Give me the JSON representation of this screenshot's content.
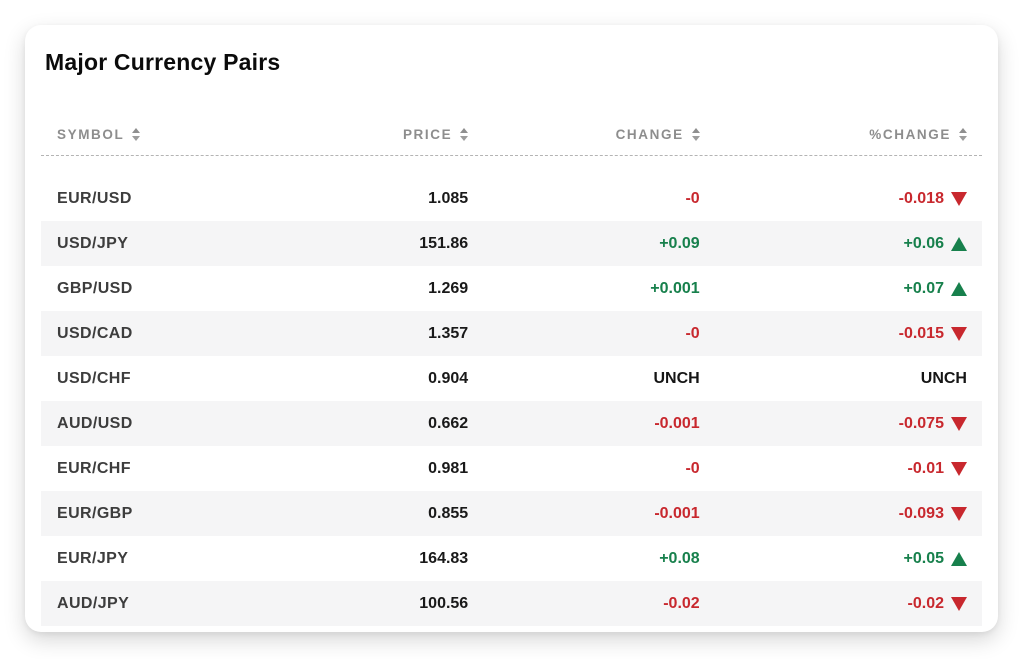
{
  "card": {
    "title": "Major Currency Pairs"
  },
  "table": {
    "columns": [
      {
        "label": "SYMBOL",
        "icon": "sort-icon",
        "sortable": true
      },
      {
        "label": "PRICE",
        "icon": "sort-icon",
        "sortable": true
      },
      {
        "label": "CHANGE",
        "icon": "sort-icon",
        "sortable": true
      },
      {
        "label": "%CHANGE",
        "icon": "sort-icon",
        "sortable": true
      }
    ],
    "rows": [
      {
        "symbol": "EUR/USD",
        "price": "1.085",
        "change": "-0",
        "pct_change": "-0.018",
        "direction": "down"
      },
      {
        "symbol": "USD/JPY",
        "price": "151.86",
        "change": "+0.09",
        "pct_change": "+0.06",
        "direction": "up"
      },
      {
        "symbol": "GBP/USD",
        "price": "1.269",
        "change": "+0.001",
        "pct_change": "+0.07",
        "direction": "up"
      },
      {
        "symbol": "USD/CAD",
        "price": "1.357",
        "change": "-0",
        "pct_change": "-0.015",
        "direction": "down"
      },
      {
        "symbol": "USD/CHF",
        "price": "0.904",
        "change": "UNCH",
        "pct_change": "UNCH",
        "direction": "unch"
      },
      {
        "symbol": "AUD/USD",
        "price": "0.662",
        "change": "-0.001",
        "pct_change": "-0.075",
        "direction": "down"
      },
      {
        "symbol": "EUR/CHF",
        "price": "0.981",
        "change": "-0",
        "pct_change": "-0.01",
        "direction": "down"
      },
      {
        "symbol": "EUR/GBP",
        "price": "0.855",
        "change": "-0.001",
        "pct_change": "-0.093",
        "direction": "down"
      },
      {
        "symbol": "EUR/JPY",
        "price": "164.83",
        "change": "+0.08",
        "pct_change": "+0.05",
        "direction": "up"
      },
      {
        "symbol": "AUD/JPY",
        "price": "100.56",
        "change": "-0.02",
        "pct_change": "-0.02",
        "direction": "down"
      }
    ]
  },
  "colors": {
    "positive": "#17804c",
    "negative": "#c8282e",
    "neutral": "#151515",
    "header_text": "#8d8d8d",
    "stripe": "#f5f5f6",
    "card_background": "#ffffff"
  }
}
